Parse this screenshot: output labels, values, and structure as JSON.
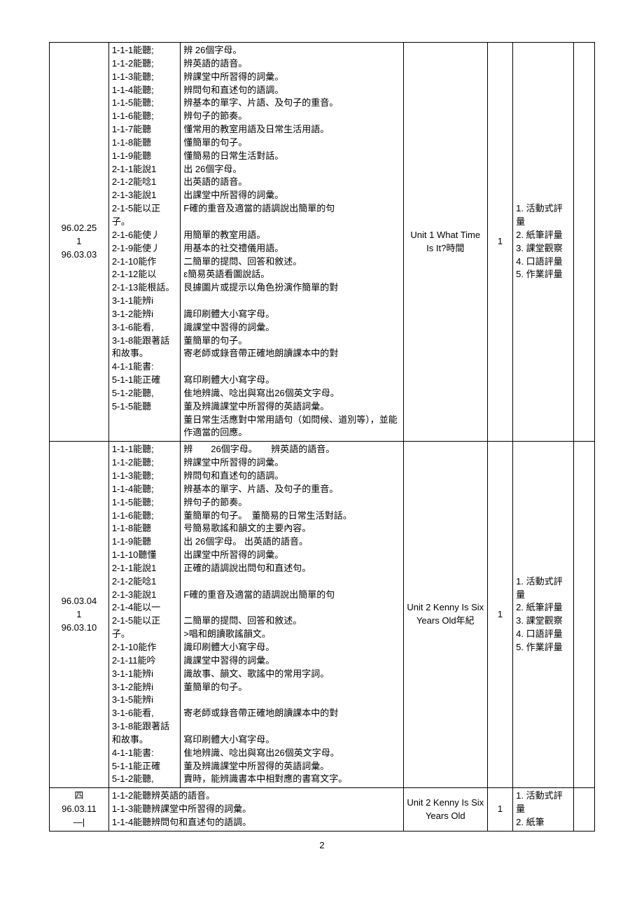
{
  "page_number": "2",
  "rows": [
    {
      "date": "96.02.25\n1\n96.03.03",
      "objectives": "1-1-1能聽;\n1-1-2能聽;\n1-1-3能聽;\n1-1-4能聽;\n1-1-5能聽;\n1-1-6能聽;\n1-1-7能聽\n1-1-8能聽\n1-1-9能聽\n2-1-1能說1\n2-1-2能唸1\n2-1-3能說1\n2-1-5能以正子。\n2-1-6能使丿\n2-1-9能使丿\n2-1-10能作\n2-1-12能以\n2-1-13能根話。\n3-1-1能辨i\n3-1-2能辨i\n3-1-6能看,\n3-1-8能跟著話和故事。\n4-1-1能書:\n5-1-1能正確\n5-1-2能聽,\n5-1-5能聽",
      "details": "辨 26個字母。\n辨英語的語音。\n辨課堂中所習得的詞彙。\n辨問句和直述句的語調。\n辨基本的單字、片語、及句子的重音。\n辨句子的節奏。\n懂常用的教室用語及日常生活用語。\n懂簡單的句子。\n懂簡易的日常生活對話。\n出 26個字母。\n出英語的語音。\n出課堂中所習得的詞彙。\nF確的重音及適當的語調說出簡單的句\n\n用簡單的教室用語。\n用基本的社交禮儀用語。\n二簡單的提問、回答和敘述。\nɛ簡易英語看圖說話。\n艮據圖片或提示以角色扮演作簡單的對\n\n識印刷體大小寫字母。\n識課堂中習得的詞彙。\n董簡單的句子。\n寄老師或錄音帶正確地朗讀課本中的對\n\n寫印刷體大小寫字母。\n隹地辨識、唸出與寫出26個英文字母。\n董及辨識課堂中所習得的英語詞彙。\n董日常生活應對中常用語句（如問候、道別等），並能作適當的回應。",
      "unit": "Unit 1 What Time Is It?時間",
      "count": "1",
      "assessment": "1. 活動式評量\n2. 紙筆評量\n3. 課堂觀察\n4. 口語評量\n5. 作業評量"
    },
    {
      "date": "96.03.04\n1\n96.03.10",
      "objectives": "1-1-1能聽;\n1-1-2能聽;\n1-1-3能聽;\n1-1-4能聽;\n1-1-5能聽;\n1-1-6能聽;\n1-1-8能聽\n1-1-9能聽\n1-1-10聽懂\n2-1-1能說1\n2-1-2能唸1\n2-1-3能說1\n2-1-4能以一\n2-1-5能以正子。\n2-1-10能作\n2-1-11能吟\n3-1-1能辨i\n3-1-2能辨i\n3-1-5能辨i\n3-1-6能看,\n3-1-8能跟著話和故事。\n4-1-1能書:\n5-1-1能正確\n5-1-2能聽,",
      "details": "辨　　26個字母。　　辨英語的語音。\n辨課堂中所習得的詞彙。\n辨問句和直述句的語調。\n辨基本的單字、片語、及句子的重音。\n辨句子的節奏。\n董簡單的句子。　董簡易的日常生活對話。\n号簡易歌謠和韻文的主要內容。\n出 26個字母。 出英語的語音。\n出課堂中所習得的詞彙。\n正確的語調說出問句和直述句。\n\nF確的重音及適當的語調說出簡單的句\n\n二簡單的提問、回答和敘述。\n>唱和朗讀歌謠韻文。\n識印刷體大小寫字母。\n識課堂中習得的詞彙。\n識故事、韻文、歌謠中的常用字詞。\n董簡單的句子。\n\n寄老師或錄音帶正確地朗讀課本中的對\n\n寫印刷體大小寫字母。\n隹地辨識、唸出與寫出26個英文字母。\n董及辨識課堂中所習得的英語詞彙。\n賣時，能辨識書本中相對應的書寫文字。",
      "unit": "Unit 2 Kenny Is Six Years Old年紀",
      "count": "1",
      "assessment": "1. 活動式評量\n2. 紙筆評量\n3. 課堂觀察\n4. 口語評量\n5. 作業評量"
    },
    {
      "date": "四\n96.03.11\n—|",
      "objectives_merged": "1-1-2能聽辨英語的語音。\n1-1-3能聽辨課堂中所習得的詞彙。\n1-1-4能聽辨問句和直述句的語調。",
      "unit": "Unit 2 Kenny Is Six Years Old",
      "count": "1",
      "assessment": "1. 活動式評量\n2. 紙筆"
    }
  ]
}
